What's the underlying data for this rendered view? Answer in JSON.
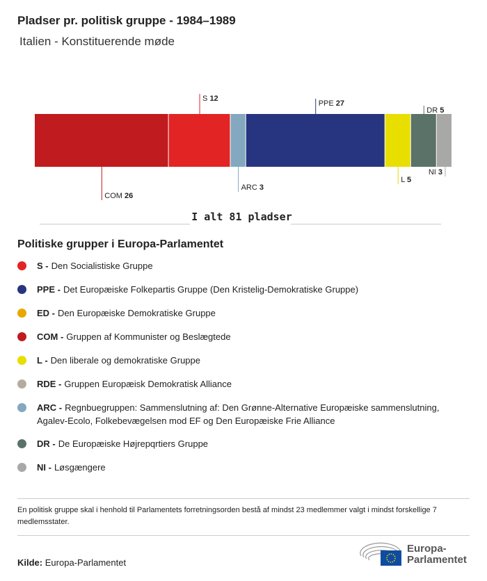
{
  "title": "Pladser pr. politisk gruppe - 1984–1989",
  "subtitle": "Italien - Konstituerende møde",
  "chart_data": {
    "type": "bar",
    "orientation": "stacked-horizontal",
    "categories": [
      "COM",
      "S",
      "ARC",
      "PPE",
      "L",
      "DR",
      "NI"
    ],
    "values": [
      26,
      12,
      3,
      27,
      5,
      5,
      3
    ],
    "colors": [
      "#c01b1e",
      "#e32424",
      "#83a8bf",
      "#273580",
      "#e8de00",
      "#5a7268",
      "#a8a8a6"
    ],
    "label_side": [
      "below",
      "above",
      "below",
      "above",
      "below",
      "above",
      "below"
    ],
    "total_label": "I alt 81 pladser"
  },
  "legend": {
    "title": "Politiske grupper i Europa-Parlamentet",
    "items": [
      {
        "abbr": "S -",
        "text": "Den Socialistiske Gruppe",
        "color": "#e32424"
      },
      {
        "abbr": "PPE -",
        "text": "Det Europæiske Folkepartis Gruppe (Den Kristelig-Demokratiske Gruppe)",
        "color": "#273580"
      },
      {
        "abbr": "ED -",
        "text": "Den Europæiske Demokratiske Gruppe",
        "color": "#e8a800"
      },
      {
        "abbr": "COM -",
        "text": "Gruppen af Kommunister og Beslægtede",
        "color": "#c01b1e"
      },
      {
        "abbr": "L -",
        "text": "Den liberale og demokratiske Gruppe",
        "color": "#e8de00"
      },
      {
        "abbr": "RDE -",
        "text": "Gruppen Europæisk Demokratisk Alliance",
        "color": "#b5aca0"
      },
      {
        "abbr": "ARC -",
        "text": "Regnbuegruppen: Sammenslutning af: Den Grønne-Alternative Europæiske sammenslutning, Agalev-Ecolo, Folkebevægelsen mod EF og Den Europæiske Frie Alliance",
        "color": "#83a8bf"
      },
      {
        "abbr": "DR -",
        "text": "De Europæiske Højrepqrtiers Gruppe",
        "color": "#5a7268"
      },
      {
        "abbr": "NI -",
        "text": "Løsgængere",
        "color": "#a8a8a6"
      }
    ]
  },
  "note": "En politisk gruppe skal i henhold til Parlamentets forretningsorden bestå af mindst 23 medlemmer valgt i mindst forskellige 7 medlemsstater.",
  "source": {
    "label": "Kilde:",
    "value": "Europa-Parlamentet"
  },
  "logo": {
    "line1": "Europa-",
    "line2": "Parlamentet"
  }
}
